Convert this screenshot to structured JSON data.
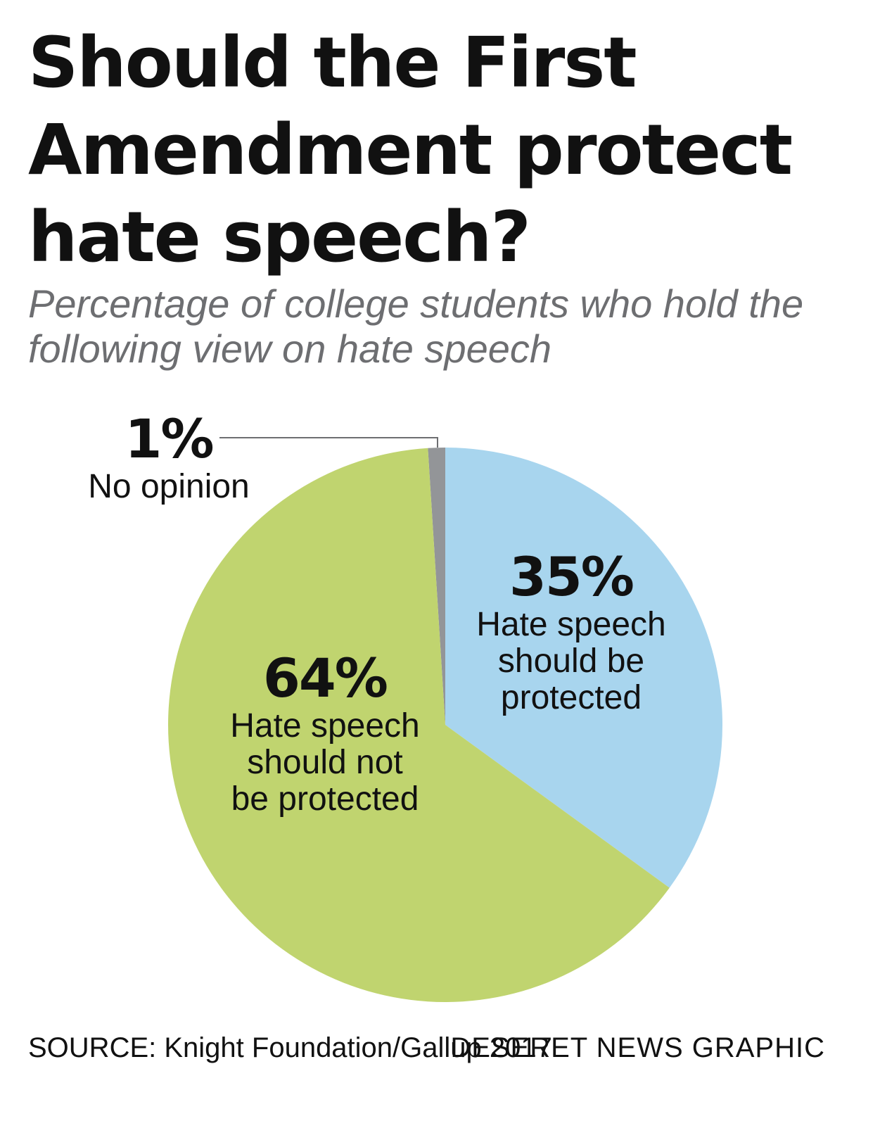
{
  "title": "Should the First Amendment protect hate speech?",
  "subtitle": "Percentage of college students who hold the following view on hate speech",
  "chart_data": {
    "type": "pie",
    "title": "Should the First Amendment protect hate speech?",
    "subtitle": "Percentage of college students who hold the following view on hate speech",
    "unit": "%",
    "slices": [
      {
        "label": "No opinion",
        "value": 1,
        "value_label": "1%",
        "color": "#939598"
      },
      {
        "label": "Hate speech should be protected",
        "value": 35,
        "value_label": "35%",
        "color": "#a8d5ee"
      },
      {
        "label": "Hate speech should not be protected",
        "value": 64,
        "value_label": "64%",
        "color": "#c0d46f"
      }
    ],
    "labels": {
      "no_opinion": {
        "pct": "1%",
        "desc": "No opinion"
      },
      "protected": {
        "pct": "35%",
        "desc": "Hate speech\nshould be\nprotected"
      },
      "not_protected": {
        "pct": "64%",
        "desc": "Hate speech\nshould not\nbe protected"
      }
    }
  },
  "footer": {
    "source": "SOURCE: Knight Foundation/Gallup 2017",
    "credit": "DESERET NEWS GRAPHIC"
  }
}
